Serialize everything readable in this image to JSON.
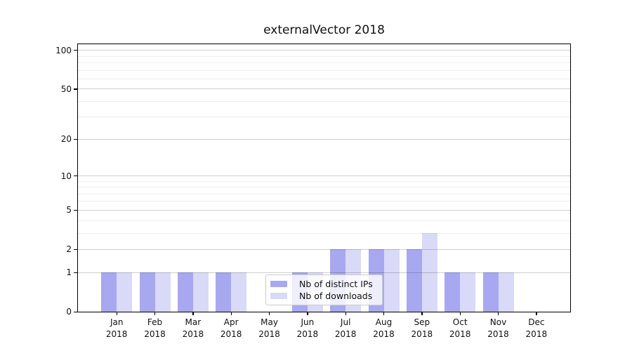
{
  "chart_data": {
    "type": "bar",
    "title": "externalVector 2018",
    "categories": [
      "Jan 2018",
      "Feb 2018",
      "Mar 2018",
      "Apr 2018",
      "May 2018",
      "Jun 2018",
      "Jul 2018",
      "Aug 2018",
      "Sep 2018",
      "Oct 2018",
      "Nov 2018",
      "Dec 2018"
    ],
    "series": [
      {
        "name": "Nb of distinct IPs",
        "color": "#a8a8f0",
        "values": [
          1,
          1,
          1,
          1,
          0,
          1,
          2,
          2,
          2,
          1,
          1,
          0
        ]
      },
      {
        "name": "Nb of downloads",
        "color": "#d9d9f8",
        "values": [
          1,
          1,
          1,
          1,
          0,
          1,
          2,
          2,
          3,
          1,
          1,
          0
        ]
      }
    ],
    "xlabel": "",
    "ylabel": "",
    "yscale": "log1p",
    "ylim": [
      0,
      111.4
    ],
    "y_major_ticks": [
      0,
      1,
      2,
      5,
      10,
      20,
      50,
      100
    ],
    "y_minor_ticks": [
      3,
      4,
      6,
      7,
      8,
      9,
      30,
      40,
      60,
      70,
      80,
      90
    ],
    "grid": true,
    "grid_over_bars": true,
    "legend_position": "lower center",
    "background": "#ffffff",
    "spine_color": "#000000",
    "major_grid_color": "#cfcfcf",
    "minor_grid_color": "#ededed"
  }
}
